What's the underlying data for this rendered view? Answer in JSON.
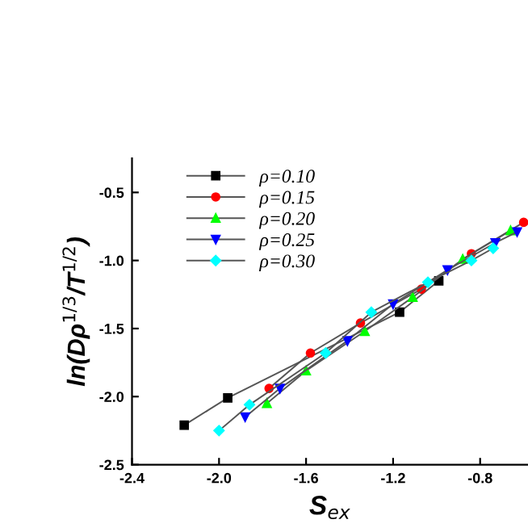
{
  "chart_data": {
    "type": "line",
    "xlabel": "S$_{ex}$",
    "ylabel": "ln(Dρ$^{1/3}$/T$^{1/2}$)",
    "xlim": [
      -2.4,
      -0.58
    ],
    "xticks": [
      -2.4,
      {
        "value": -2.0,
        "label": "-2.0"
      },
      -1.6,
      -1.2,
      -0.8
    ],
    "ylim": [
      -2.5,
      -0.25
    ],
    "yticks": [
      -2.5,
      {
        "value": -2.0,
        "label": "-2.0"
      },
      -1.5,
      {
        "value": -1.0,
        "label": "-1.0"
      },
      -0.5
    ],
    "legend": "top left",
    "grid": false,
    "line_style": "solid",
    "series": [
      {
        "name": "ρ=0.10",
        "color": "#000000",
        "marker": "square",
        "x": [
          -2.16,
          -1.96,
          -1.17,
          -0.99
        ],
        "values": [
          -2.21,
          -2.01,
          -1.38,
          -1.15
        ]
      },
      {
        "name": "ρ=0.15",
        "color": "#ff0000",
        "marker": "circle",
        "x": [
          -1.77,
          -1.58,
          -1.35,
          -1.07,
          -0.84,
          -0.6
        ],
        "values": [
          -1.94,
          -1.68,
          -1.46,
          -1.21,
          -0.95,
          -0.72
        ]
      },
      {
        "name": "ρ=0.20",
        "color": "#00ff00",
        "marker": "triangle",
        "x": [
          -1.78,
          -1.6,
          -1.33,
          -1.11,
          -0.88,
          -0.66
        ],
        "values": [
          -2.05,
          -1.81,
          -1.52,
          -1.27,
          -0.99,
          -0.78
        ]
      },
      {
        "name": "ρ=0.25",
        "color": "#0000ff",
        "marker": "triangle_down",
        "x": [
          -1.88,
          -1.72,
          -1.41,
          -1.2,
          -0.95,
          -0.73,
          -0.63
        ],
        "values": [
          -2.15,
          -1.94,
          -1.59,
          -1.32,
          -1.07,
          -0.87,
          -0.79
        ]
      },
      {
        "name": "ρ=0.30",
        "color": "#00ffff",
        "marker": "diamond",
        "x": [
          -2.0,
          -1.86,
          -1.51,
          -1.3,
          -1.04,
          -0.84,
          -0.74
        ],
        "values": [
          -2.25,
          -2.06,
          -1.68,
          -1.38,
          -1.16,
          -1.0,
          -0.91
        ]
      }
    ]
  }
}
